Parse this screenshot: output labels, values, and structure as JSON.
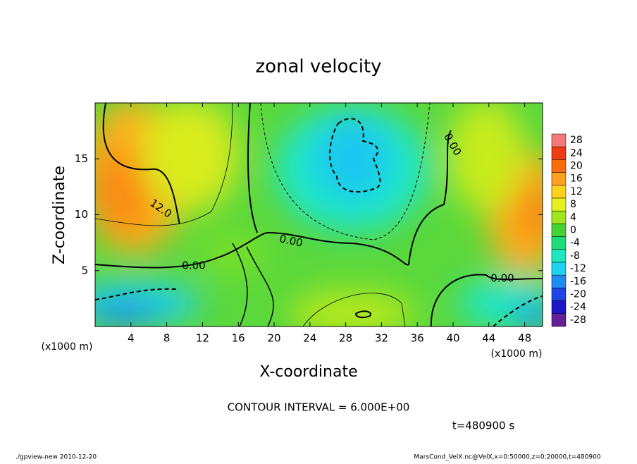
{
  "chart_data": {
    "type": "contour",
    "title": "zonal velocity",
    "x_label": "X-coordinate",
    "y_label": "Z-coordinate",
    "unit_label": "(x1000 m)",
    "xlim": [
      0,
      50
    ],
    "xticks": [
      4,
      8,
      12,
      16,
      20,
      24,
      28,
      32,
      36,
      40,
      44,
      48
    ],
    "ylim": [
      0,
      20
    ],
    "yticks": [
      5,
      10,
      15
    ],
    "colorbar": {
      "levels": [
        28,
        24,
        20,
        16,
        12,
        8,
        4,
        0,
        -4,
        -8,
        -12,
        -16,
        -20,
        -24,
        -28
      ],
      "colors": [
        "#f47a7a",
        "#f03c14",
        "#fa6e0a",
        "#fca01e",
        "#fcd21e",
        "#e6f01e",
        "#a0e61e",
        "#46d232",
        "#1edc78",
        "#1ee6be",
        "#1ed2f0",
        "#1e8cf0",
        "#1e46e6",
        "#1e14c8",
        "#641e96"
      ]
    },
    "contour_labels": [
      "12.0",
      "0.00",
      "0.00",
      "0.00",
      "0.00"
    ],
    "contour_interval": "CONTOUR INTERVAL = 6.000E+00",
    "time_label": "t=480900 s",
    "footer_left": "./gpview-new  2010-12-20",
    "footer_right": "MarsCond_VelX.nc@VelX,x=0:50000,z=0:20000,t=480900"
  }
}
